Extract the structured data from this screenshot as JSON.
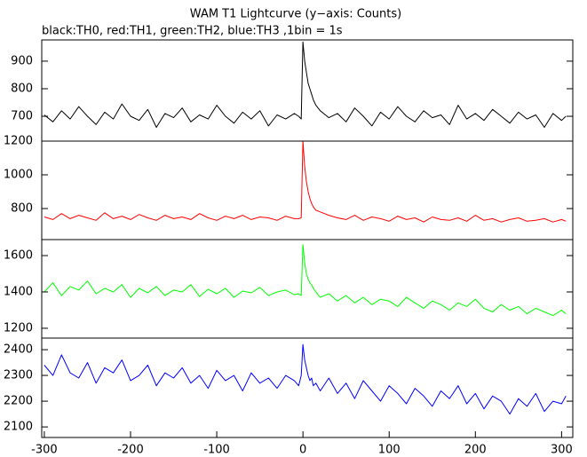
{
  "chart_data": [
    {
      "type": "line",
      "title": "WAM T1 Lightcurve (y−axis: Counts)",
      "subtitle": "black:TH0, red:TH1, green:TH2, blue:TH3 ,1bin = 1s",
      "color": "#000000",
      "x": [
        -300,
        -290,
        -280,
        -270,
        -260,
        -250,
        -240,
        -230,
        -220,
        -210,
        -200,
        -190,
        -180,
        -170,
        -160,
        -150,
        -140,
        -130,
        -120,
        -110,
        -100,
        -90,
        -80,
        -70,
        -60,
        -50,
        -40,
        -30,
        -20,
        -10,
        -5,
        -2,
        0,
        2,
        4,
        6,
        8,
        10,
        12,
        15,
        20,
        30,
        40,
        50,
        60,
        70,
        80,
        90,
        100,
        110,
        120,
        130,
        140,
        150,
        160,
        170,
        180,
        190,
        200,
        210,
        220,
        230,
        240,
        250,
        260,
        270,
        280,
        290,
        300,
        305
      ],
      "values": [
        705,
        680,
        720,
        690,
        735,
        700,
        670,
        715,
        690,
        745,
        700,
        685,
        725,
        660,
        710,
        695,
        730,
        680,
        705,
        690,
        740,
        700,
        675,
        715,
        690,
        720,
        665,
        705,
        690,
        710,
        700,
        690,
        970,
        900,
        860,
        820,
        800,
        780,
        760,
        740,
        720,
        695,
        710,
        680,
        730,
        700,
        665,
        715,
        690,
        735,
        700,
        680,
        720,
        695,
        705,
        670,
        740,
        690,
        710,
        685,
        725,
        700,
        675,
        715,
        690,
        705,
        660,
        710,
        685,
        700
      ],
      "xlim": [
        -303,
        313
      ],
      "ylim": [
        610,
        977
      ],
      "yticks": [
        700,
        800,
        900
      ]
    },
    {
      "type": "line",
      "color": "#ff0000",
      "x": [
        -300,
        -290,
        -280,
        -270,
        -260,
        -250,
        -240,
        -230,
        -220,
        -210,
        -200,
        -190,
        -180,
        -170,
        -160,
        -150,
        -140,
        -130,
        -120,
        -110,
        -100,
        -90,
        -80,
        -70,
        -60,
        -50,
        -40,
        -30,
        -20,
        -10,
        -5,
        -2,
        0,
        2,
        4,
        6,
        8,
        10,
        12,
        15,
        20,
        30,
        40,
        50,
        60,
        70,
        80,
        90,
        100,
        110,
        120,
        130,
        140,
        150,
        160,
        170,
        180,
        190,
        200,
        210,
        220,
        230,
        240,
        250,
        260,
        270,
        280,
        290,
        300,
        305
      ],
      "values": [
        750,
        735,
        770,
        740,
        760,
        745,
        730,
        775,
        740,
        755,
        735,
        765,
        745,
        730,
        760,
        740,
        750,
        735,
        770,
        745,
        730,
        755,
        740,
        760,
        735,
        750,
        745,
        730,
        755,
        740,
        740,
        745,
        1200,
        1050,
        960,
        900,
        860,
        830,
        810,
        790,
        780,
        760,
        745,
        735,
        760,
        730,
        750,
        740,
        725,
        755,
        735,
        745,
        720,
        750,
        735,
        730,
        745,
        725,
        760,
        730,
        740,
        720,
        735,
        745,
        725,
        730,
        740,
        720,
        735,
        725
      ],
      "xlim": [
        -303,
        313
      ],
      "ylim": [
        616,
        1200
      ],
      "yticks": [
        800,
        1000,
        1200
      ]
    },
    {
      "type": "line",
      "color": "#00ff00",
      "x": [
        -300,
        -290,
        -280,
        -270,
        -260,
        -250,
        -240,
        -230,
        -220,
        -210,
        -200,
        -190,
        -180,
        -170,
        -160,
        -150,
        -140,
        -130,
        -120,
        -110,
        -100,
        -90,
        -80,
        -70,
        -60,
        -50,
        -40,
        -30,
        -20,
        -10,
        -5,
        -2,
        0,
        2,
        4,
        6,
        8,
        10,
        12,
        15,
        20,
        30,
        40,
        50,
        60,
        70,
        80,
        90,
        100,
        110,
        120,
        130,
        140,
        150,
        160,
        170,
        180,
        190,
        200,
        210,
        220,
        230,
        240,
        250,
        260,
        270,
        280,
        290,
        300,
        305
      ],
      "values": [
        1400,
        1450,
        1380,
        1430,
        1410,
        1460,
        1390,
        1420,
        1400,
        1440,
        1370,
        1420,
        1395,
        1430,
        1380,
        1410,
        1400,
        1440,
        1375,
        1415,
        1390,
        1420,
        1370,
        1405,
        1395,
        1425,
        1380,
        1400,
        1410,
        1385,
        1390,
        1380,
        1660,
        1560,
        1500,
        1470,
        1450,
        1440,
        1420,
        1400,
        1370,
        1390,
        1350,
        1380,
        1340,
        1370,
        1330,
        1360,
        1350,
        1320,
        1370,
        1340,
        1310,
        1350,
        1330,
        1300,
        1340,
        1320,
        1360,
        1310,
        1290,
        1330,
        1300,
        1320,
        1280,
        1310,
        1290,
        1270,
        1300,
        1280
      ],
      "xlim": [
        -303,
        313
      ],
      "ylim": [
        1146,
        1688
      ],
      "yticks": [
        1200,
        1400,
        1600
      ]
    },
    {
      "type": "line",
      "color": "#0000ff",
      "x": [
        -300,
        -290,
        -280,
        -270,
        -260,
        -250,
        -240,
        -230,
        -220,
        -210,
        -200,
        -190,
        -180,
        -170,
        -160,
        -150,
        -140,
        -130,
        -120,
        -110,
        -100,
        -90,
        -80,
        -70,
        -60,
        -50,
        -40,
        -30,
        -20,
        -10,
        -5,
        -2,
        0,
        2,
        4,
        6,
        8,
        10,
        12,
        15,
        20,
        30,
        40,
        50,
        60,
        70,
        80,
        90,
        100,
        110,
        120,
        130,
        140,
        150,
        160,
        170,
        180,
        190,
        200,
        210,
        220,
        230,
        240,
        250,
        260,
        270,
        280,
        290,
        300,
        305
      ],
      "values": [
        2340,
        2300,
        2380,
        2310,
        2290,
        2350,
        2270,
        2330,
        2310,
        2360,
        2280,
        2300,
        2340,
        2260,
        2310,
        2290,
        2330,
        2270,
        2300,
        2250,
        2320,
        2280,
        2300,
        2240,
        2310,
        2270,
        2290,
        2250,
        2300,
        2280,
        2260,
        2300,
        2420,
        2360,
        2330,
        2300,
        2280,
        2290,
        2260,
        2270,
        2240,
        2290,
        2230,
        2270,
        2210,
        2280,
        2240,
        2200,
        2260,
        2230,
        2190,
        2250,
        2220,
        2180,
        2240,
        2210,
        2260,
        2190,
        2230,
        2170,
        2220,
        2200,
        2150,
        2210,
        2180,
        2230,
        2160,
        2200,
        2190,
        2220
      ],
      "xlim": [
        -303,
        313
      ],
      "ylim": [
        2059,
        2445
      ],
      "yticks": [
        2100,
        2200,
        2300,
        2400
      ],
      "xticks": [
        -300,
        -200,
        -100,
        0,
        100,
        200,
        300
      ]
    }
  ]
}
